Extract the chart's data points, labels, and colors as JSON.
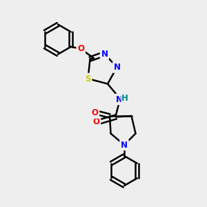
{
  "bg_color": "#eeeeee",
  "bond_color": "#000000",
  "bond_width": 1.8,
  "atom_colors": {
    "N": "#0000ff",
    "O": "#ff0000",
    "S": "#cccc00",
    "NH": "#0000ff",
    "H": "#008888"
  },
  "font_size": 8.5,
  "figsize": [
    3.0,
    3.0
  ],
  "dpi": 100
}
